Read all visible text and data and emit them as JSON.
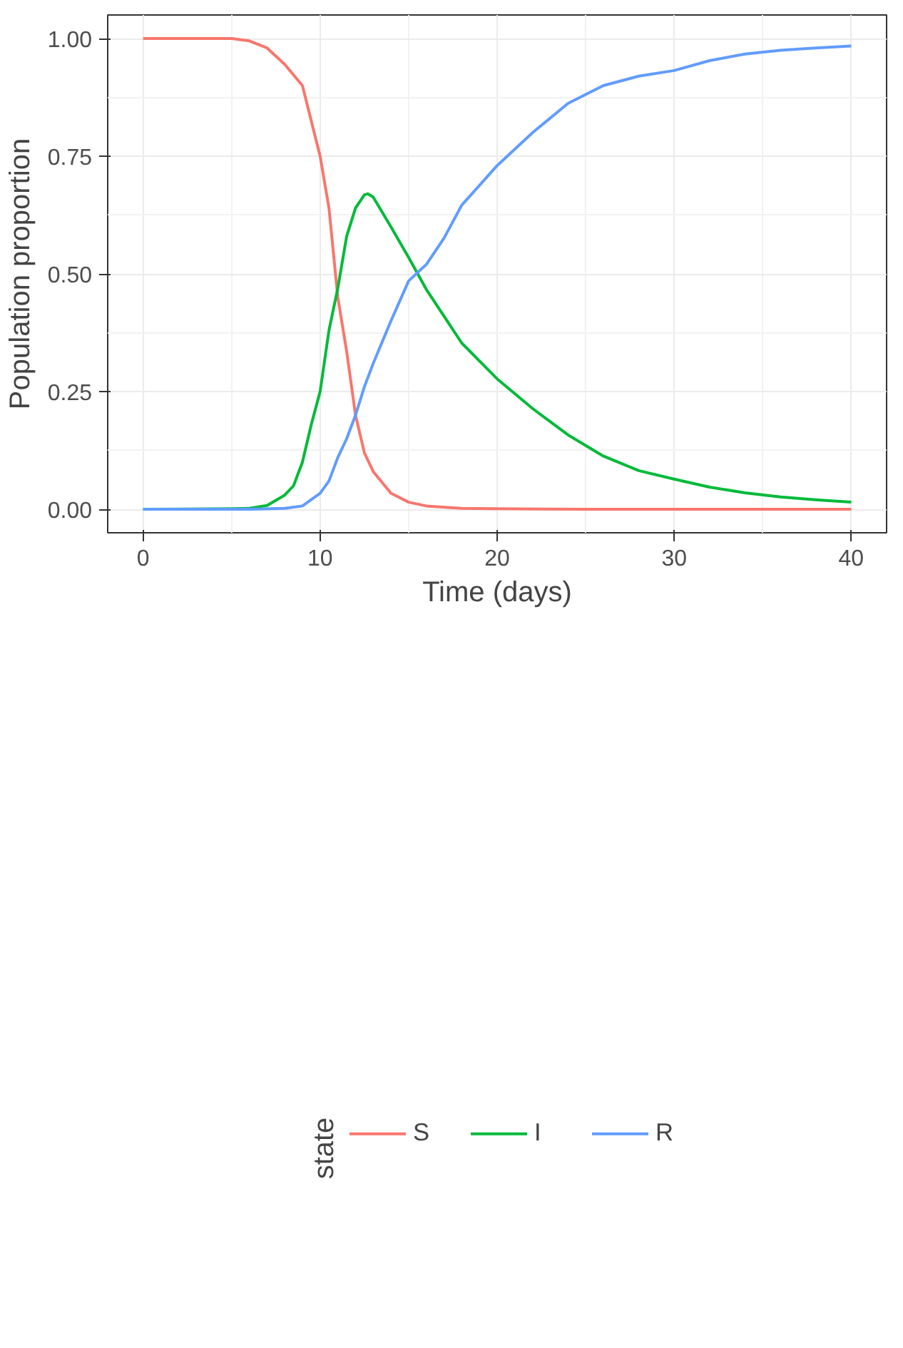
{
  "chart_data": {
    "type": "line",
    "xlabel": "Time (days)",
    "ylabel": "Population proportion",
    "legend_title": "state",
    "xlim": [
      -2,
      42
    ],
    "ylim": [
      -0.05,
      1.05
    ],
    "xticks": [
      0,
      10,
      20,
      30,
      40
    ],
    "yticks": [
      {
        "value": 0,
        "label": "0.00"
      },
      {
        "value": 0.25,
        "label": "0.25"
      },
      {
        "value": 0.5,
        "label": "0.50"
      },
      {
        "value": 0.75,
        "label": "0.75"
      },
      {
        "value": 1,
        "label": "1.00"
      }
    ],
    "grid": true,
    "legend": "bottom",
    "marker": "none",
    "line_style": "solid",
    "series": [
      {
        "name": "S",
        "color": "#f8766d",
        "x": [
          0,
          5,
          6,
          7,
          8,
          9,
          10,
          10.5,
          11,
          11.5,
          12,
          12.5,
          13,
          14,
          15,
          16,
          18,
          20,
          25,
          30,
          35,
          40
        ],
        "values": [
          1,
          1,
          0.995,
          0.98,
          0.945,
          0.9,
          0.75,
          0.64,
          0.45,
          0.335,
          0.2,
          0.12,
          0.08,
          0.034,
          0.015,
          0.007,
          0.002,
          0.001,
          0,
          0,
          0,
          0
        ]
      },
      {
        "name": "I",
        "color": "#00ba38",
        "x": [
          0,
          5,
          6,
          7,
          8,
          8.5,
          9,
          9.5,
          10,
          10.5,
          11,
          11.5,
          12,
          12.5,
          12.7,
          13,
          14,
          15,
          16,
          17,
          18,
          20,
          22,
          24,
          26,
          28,
          30,
          32,
          34,
          36,
          38,
          40
        ],
        "values": [
          0,
          0.001,
          0.002,
          0.008,
          0.03,
          0.05,
          0.1,
          0.18,
          0.25,
          0.38,
          0.47,
          0.58,
          0.64,
          0.668,
          0.67,
          0.663,
          0.6,
          0.535,
          0.467,
          0.41,
          0.353,
          0.277,
          0.214,
          0.158,
          0.113,
          0.082,
          0.064,
          0.047,
          0.035,
          0.026,
          0.02,
          0.015
        ]
      },
      {
        "name": "R",
        "color": "#619cff",
        "x": [
          0,
          6,
          8,
          9,
          10,
          10.5,
          11,
          11.5,
          12,
          12.5,
          13,
          14,
          15,
          16,
          17,
          18,
          20,
          22,
          24,
          26,
          28,
          30,
          32,
          34,
          36,
          38,
          40
        ],
        "values": [
          0,
          0,
          0.002,
          0.007,
          0.034,
          0.06,
          0.11,
          0.15,
          0.2,
          0.26,
          0.31,
          0.4,
          0.485,
          0.52,
          0.576,
          0.646,
          0.73,
          0.8,
          0.862,
          0.9,
          0.92,
          0.932,
          0.953,
          0.967,
          0.975,
          0.98,
          0.984
        ]
      }
    ]
  }
}
